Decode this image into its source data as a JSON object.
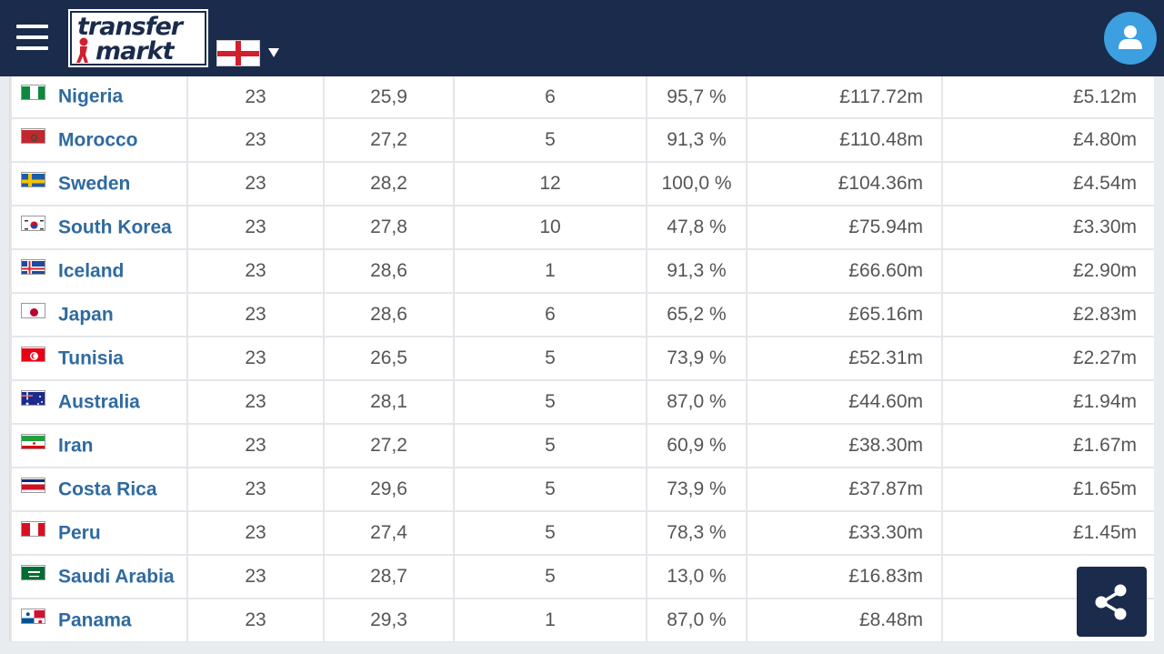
{
  "header": {
    "logo_line1": "transfer",
    "logo_line2": "markt",
    "menu_icon": "hamburger-icon",
    "language_flag": "england-flag",
    "user_icon": "user-icon"
  },
  "colors": {
    "header_bg": "#1a2b4c",
    "link_blue": "#2f6aa0",
    "avatar_blue": "#3b9fe0"
  },
  "rows": [
    {
      "country": "Nigeria",
      "flag": "nigeria-flag",
      "squad": "23",
      "age": "25,9",
      "foreigners": "6",
      "percent": "95,7 %",
      "total_value": "£117.72m",
      "avg_value": "£5.12m"
    },
    {
      "country": "Morocco",
      "flag": "morocco-flag",
      "squad": "23",
      "age": "27,2",
      "foreigners": "5",
      "percent": "91,3 %",
      "total_value": "£110.48m",
      "avg_value": "£4.80m"
    },
    {
      "country": "Sweden",
      "flag": "sweden-flag",
      "squad": "23",
      "age": "28,2",
      "foreigners": "12",
      "percent": "100,0 %",
      "total_value": "£104.36m",
      "avg_value": "£4.54m"
    },
    {
      "country": "South Korea",
      "flag": "south-korea-flag",
      "squad": "23",
      "age": "27,8",
      "foreigners": "10",
      "percent": "47,8 %",
      "total_value": "£75.94m",
      "avg_value": "£3.30m"
    },
    {
      "country": "Iceland",
      "flag": "iceland-flag",
      "squad": "23",
      "age": "28,6",
      "foreigners": "1",
      "percent": "91,3 %",
      "total_value": "£66.60m",
      "avg_value": "£2.90m"
    },
    {
      "country": "Japan",
      "flag": "japan-flag",
      "squad": "23",
      "age": "28,6",
      "foreigners": "6",
      "percent": "65,2 %",
      "total_value": "£65.16m",
      "avg_value": "£2.83m"
    },
    {
      "country": "Tunisia",
      "flag": "tunisia-flag",
      "squad": "23",
      "age": "26,5",
      "foreigners": "5",
      "percent": "73,9 %",
      "total_value": "£52.31m",
      "avg_value": "£2.27m"
    },
    {
      "country": "Australia",
      "flag": "australia-flag",
      "squad": "23",
      "age": "28,1",
      "foreigners": "5",
      "percent": "87,0 %",
      "total_value": "£44.60m",
      "avg_value": "£1.94m"
    },
    {
      "country": "Iran",
      "flag": "iran-flag",
      "squad": "23",
      "age": "27,2",
      "foreigners": "5",
      "percent": "60,9 %",
      "total_value": "£38.30m",
      "avg_value": "£1.67m"
    },
    {
      "country": "Costa Rica",
      "flag": "costa-rica-flag",
      "squad": "23",
      "age": "29,6",
      "foreigners": "5",
      "percent": "73,9 %",
      "total_value": "£37.87m",
      "avg_value": "£1.65m"
    },
    {
      "country": "Peru",
      "flag": "peru-flag",
      "squad": "23",
      "age": "27,4",
      "foreigners": "5",
      "percent": "78,3 %",
      "total_value": "£33.30m",
      "avg_value": "£1.45m"
    },
    {
      "country": "Saudi Arabia",
      "flag": "saudi-arabia-flag",
      "squad": "23",
      "age": "28,7",
      "foreigners": "5",
      "percent": "13,0 %",
      "total_value": "£16.83m",
      "avg_value": ""
    },
    {
      "country": "Panama",
      "flag": "panama-flag",
      "squad": "23",
      "age": "29,3",
      "foreigners": "1",
      "percent": "87,0 %",
      "total_value": "£8.48m",
      "avg_value": ""
    }
  ],
  "share_icon": "share-icon"
}
